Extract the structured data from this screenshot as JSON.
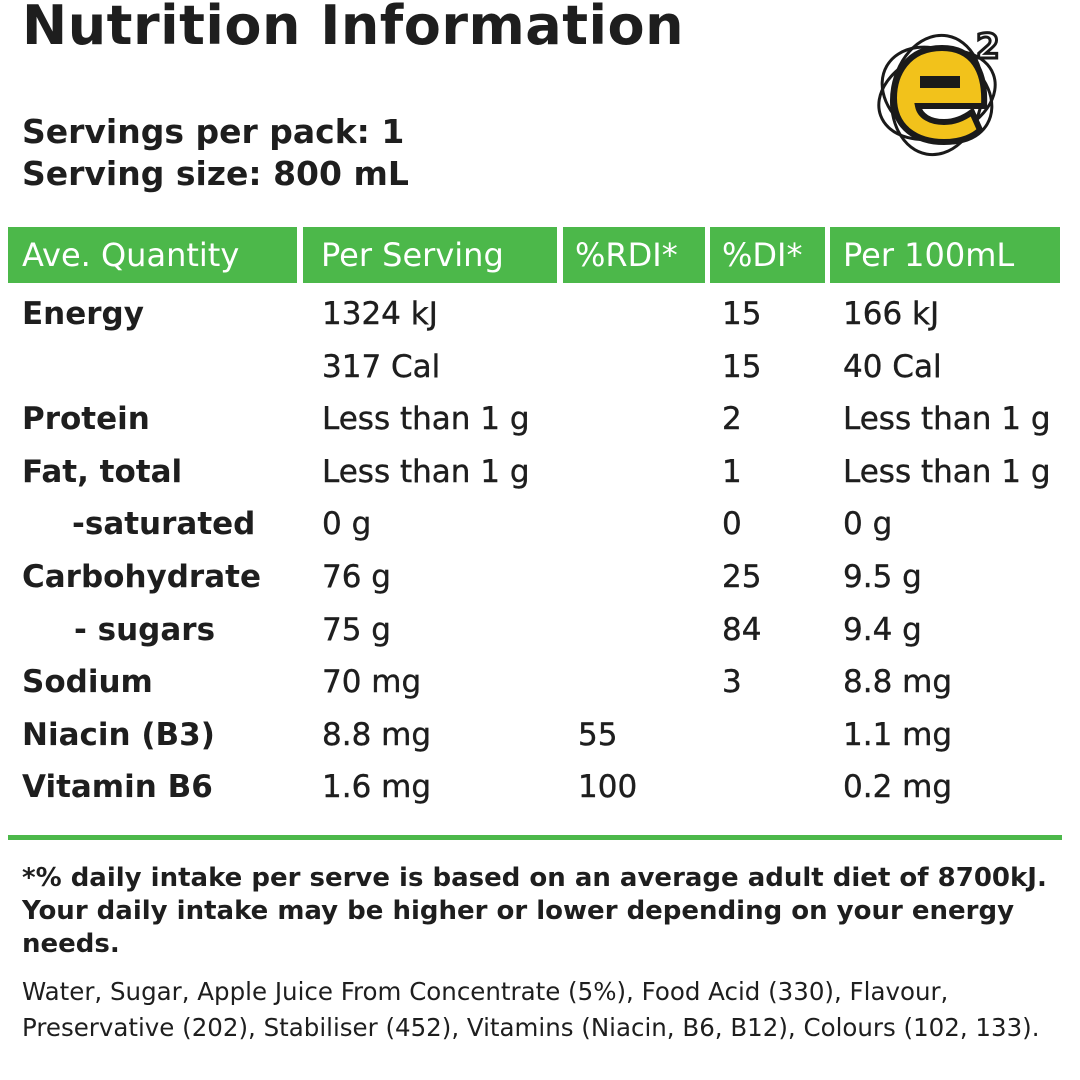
{
  "title": "Nutrition Information",
  "servings_per_pack": "Servings per pack: 1",
  "serving_size": "Serving size: 800 mL",
  "logo": {
    "text": "e2",
    "colors": {
      "fill": "#f2c21b",
      "outline": "#1a1a1a"
    }
  },
  "colors": {
    "accent": "#4cb84a",
    "text": "#1e1e1e"
  },
  "headers": [
    "Ave. Quantity",
    "Per Serving",
    "%RDI*",
    "%DI*",
    "Per 100mL"
  ],
  "rows": [
    {
      "name": "Energy",
      "serving": "1324 kJ",
      "rdi": "",
      "di": "15",
      "per100": "166 kJ"
    },
    {
      "name": "",
      "serving": "317 Cal",
      "rdi": "",
      "di": "15",
      "per100": "40 Cal"
    },
    {
      "name": "Protein",
      "serving": "Less than 1 g",
      "rdi": "",
      "di": "2",
      "per100": "Less than 1 g"
    },
    {
      "name": "Fat, total",
      "serving": "Less than 1 g",
      "rdi": "",
      "di": "1",
      "per100": "Less than 1 g"
    },
    {
      "name": "-saturated",
      "serving": "0 g",
      "rdi": "",
      "di": "0",
      "per100": "0 g"
    },
    {
      "name": "Carbohydrate",
      "serving": "76 g",
      "rdi": "",
      "di": "25",
      "per100": "9.5 g"
    },
    {
      "name": "- sugars",
      "serving": "75 g",
      "rdi": "",
      "di": "84",
      "per100": "9.4 g"
    },
    {
      "name": "Sodium",
      "serving": "70 mg",
      "rdi": "",
      "di": "3",
      "per100": "8.8 mg"
    },
    {
      "name": "Niacin (B3)",
      "serving": "8.8 mg",
      "rdi": "55",
      "di": "",
      "per100": "1.1 mg"
    },
    {
      "name": "Vitamin B6",
      "serving": "1.6 mg",
      "rdi": "100",
      "di": "",
      "per100": "0.2 mg"
    }
  ],
  "footnote": "*% daily intake per serve is based on an average adult diet of 8700kJ. Your daily intake may be higher or lower depending on your energy needs.",
  "ingredients": "Water, Sugar, Apple Juice From Concentrate (5%), Food Acid (330), Flavour, Preservative (202), Stabiliser (452), Vitamins (Niacin, B6, B12), Colours (102, 133)."
}
